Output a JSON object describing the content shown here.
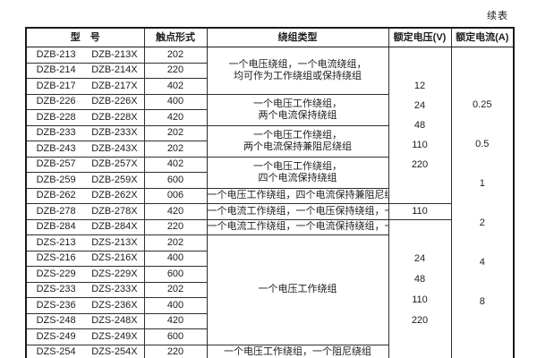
{
  "meta": {
    "continued_label": "续表"
  },
  "table": {
    "headers": {
      "model": "型　号",
      "contact": "触点形式",
      "winding": "绕组类型",
      "voltage": "额定电压(V)",
      "current": "额定电流(A)"
    },
    "rows": [
      {
        "model": "DZB-213",
        "model_x": "DZB-213X",
        "contact": "202"
      },
      {
        "model": "DZB-214",
        "model_x": "DZB-214X",
        "contact": "220"
      },
      {
        "model": "DZB-217",
        "model_x": "DZB-217X",
        "contact": "402"
      },
      {
        "model": "DZB-226",
        "model_x": "DZB-226X",
        "contact": "400"
      },
      {
        "model": "DZB-228",
        "model_x": "DZB-228X",
        "contact": "420"
      },
      {
        "model": "DZB-233",
        "model_x": "DZB-233X",
        "contact": "202"
      },
      {
        "model": "DZB-243",
        "model_x": "DZB-243X",
        "contact": "202"
      },
      {
        "model": "DZB-257",
        "model_x": "DZB-257X",
        "contact": "402"
      },
      {
        "model": "DZB-259",
        "model_x": "DZB-259X",
        "contact": "600"
      },
      {
        "model": "DZB-262",
        "model_x": "DZB-262X",
        "contact": "006"
      },
      {
        "model": "DZB-278",
        "model_x": "DZB-278X",
        "contact": "420"
      },
      {
        "model": "DZB-284",
        "model_x": "DZB-284X",
        "contact": "220"
      },
      {
        "model": "DZS-213",
        "model_x": "DZS-213X",
        "contact": "202"
      },
      {
        "model": "DZS-216",
        "model_x": "DZS-216X",
        "contact": "400"
      },
      {
        "model": "DZS-229",
        "model_x": "DZS-229X",
        "contact": "600"
      },
      {
        "model": "DZS-233",
        "model_x": "DZS-233X",
        "contact": "202"
      },
      {
        "model": "DZS-236",
        "model_x": "DZS-236X",
        "contact": "400"
      },
      {
        "model": "DZS-248",
        "model_x": "DZS-248X",
        "contact": "420"
      },
      {
        "model": "DZS-249",
        "model_x": "DZS-249X",
        "contact": "600"
      },
      {
        "model": "DZS-254",
        "model_x": "DZS-254X",
        "contact": "220"
      }
    ],
    "windings": {
      "w1": [
        "一个电压绕组，一个电流绕组，",
        "均可作为工作绕组或保持绕组"
      ],
      "w2": [
        "一个电压工作绕组，",
        "两个电流保持绕组"
      ],
      "w3": [
        "一个电压工作绕组，",
        "两个电流保持兼阻尼绕组"
      ],
      "w4": [
        "一个电压工作绕组，",
        "四个电流保持绕组"
      ],
      "w5": "一个电压工作绕组，四个电流保持兼阻尼绕组",
      "w6": "一个电流工作绕组，一个电压保持绕组，一个阻尼绕组",
      "w7": "一个电流工作绕组，一个电流保持绕组，一个电压保持绕组",
      "w8": "一个电压工作绕组",
      "w9": "一个电压工作绕组，一个阻尼绕组"
    },
    "voltages": {
      "v1": [
        "12",
        "24",
        "48",
        "110",
        "220"
      ],
      "v2": "110",
      "v3": [
        "24",
        "48",
        "110",
        "220"
      ]
    },
    "currents": [
      "0.25",
      "0.5",
      "1",
      "2",
      "4",
      "8"
    ]
  }
}
